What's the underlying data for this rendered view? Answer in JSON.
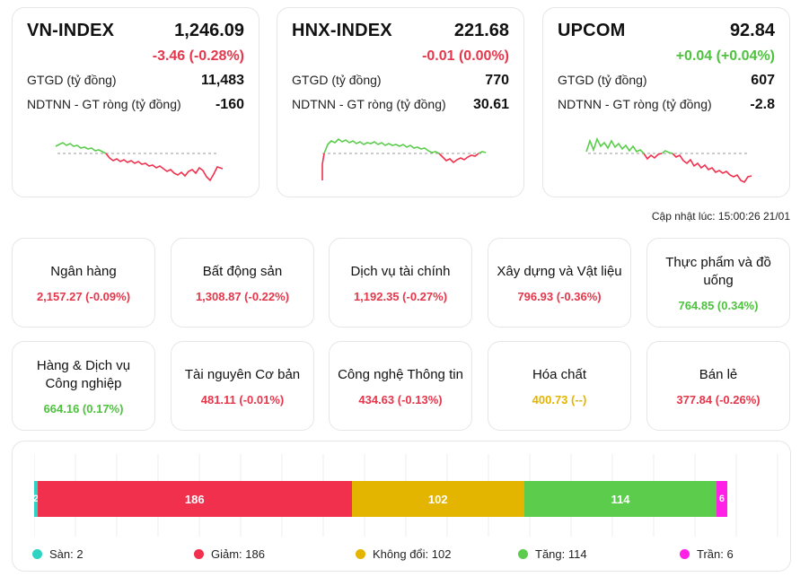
{
  "indices": [
    {
      "name": "VN-INDEX",
      "value": "1,246.09",
      "change": "-3.46 (-0.28%)",
      "trend": "neg",
      "gtgd_label": "GTGD (tỷ đồng)",
      "gtgd_value": "11,483",
      "ndtnn_label": "NDTNN - GT ròng (tỷ đồng)",
      "ndtnn_value": "-160"
    },
    {
      "name": "HNX-INDEX",
      "value": "221.68",
      "change": "-0.01 (0.00%)",
      "trend": "neg",
      "gtgd_label": "GTGD (tỷ đồng)",
      "gtgd_value": "770",
      "ndtnn_label": "NDTNN - GT ròng (tỷ đồng)",
      "ndtnn_value": "30.61"
    },
    {
      "name": "UPCOM",
      "value": "92.84",
      "change": "+0.04 (+0.04%)",
      "trend": "pos",
      "gtgd_label": "GTGD (tỷ đồng)",
      "gtgd_value": "607",
      "ndtnn_label": "NDTNN - GT ròng (tỷ đồng)",
      "ndtnn_value": "-2.8"
    }
  ],
  "updated": "Cập nhật lúc: 15:00:26 21/01",
  "sectors": [
    {
      "name": "Ngân hàng",
      "metric": "2,157.27 (-0.09%)",
      "trend": "neg"
    },
    {
      "name": "Bất động sản",
      "metric": "1,308.87 (-0.22%)",
      "trend": "neg"
    },
    {
      "name": "Dịch vụ tài chính",
      "metric": "1,192.35 (-0.27%)",
      "trend": "neg"
    },
    {
      "name": "Xây dựng và Vật liệu",
      "metric": "796.93 (-0.36%)",
      "trend": "neg"
    },
    {
      "name": "Thực phẩm và đồ uống",
      "metric": "764.85 (0.34%)",
      "trend": "pos"
    },
    {
      "name": "Hàng & Dịch vụ Công nghiệp",
      "metric": "664.16 (0.17%)",
      "trend": "pos"
    },
    {
      "name": "Tài nguyên Cơ bản",
      "metric": "481.11 (-0.01%)",
      "trend": "neg"
    },
    {
      "name": "Công nghệ Thông tin",
      "metric": "434.63 (-0.13%)",
      "trend": "neg"
    },
    {
      "name": "Hóa chất",
      "metric": "400.73 (--)",
      "trend": "flat"
    },
    {
      "name": "Bán lẻ",
      "metric": "377.84 (-0.26%)",
      "trend": "neg"
    }
  ],
  "breadth": {
    "segments": [
      {
        "key": "san",
        "label": "Sàn",
        "count": 2,
        "color": "#2ed3c2"
      },
      {
        "key": "giam",
        "label": "Giảm",
        "count": 186,
        "color": "#f0304c"
      },
      {
        "key": "khongdoi",
        "label": "Không đổi",
        "count": 102,
        "color": "#e3b400"
      },
      {
        "key": "tang",
        "label": "Tăng",
        "count": 114,
        "color": "#5ccc4d"
      },
      {
        "key": "tran",
        "label": "Trần",
        "count": 6,
        "color": "#ff22e6"
      }
    ],
    "legend": [
      "Sàn: 2",
      "Giảm: 186",
      "Không đổi: 102",
      "Tăng: 114",
      "Trần: 6"
    ]
  },
  "colors": {
    "negative": "#e5374b",
    "positive": "#4ec23e",
    "flat": "#e3b400"
  }
}
